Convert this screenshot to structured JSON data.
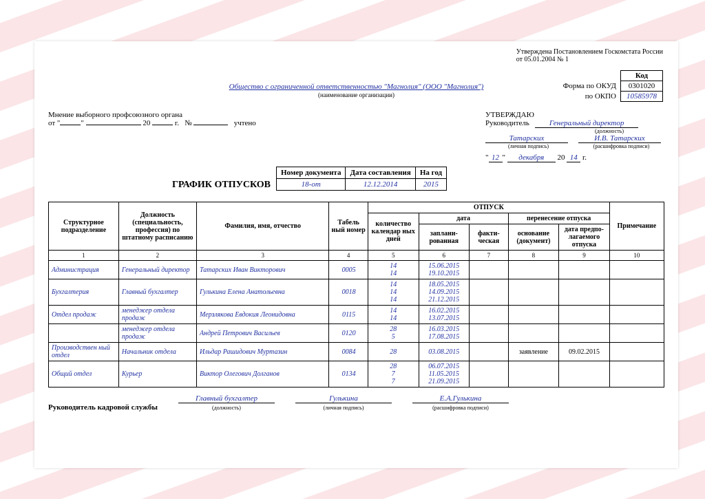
{
  "approval_notice": "Утверждена Постановлением Госкомстата России",
  "approval_date": "от 05.01.2004 № 1",
  "codes": {
    "header": "Код",
    "okud_label": "Форма по ОКУД",
    "okud": "0301020",
    "okpo_label": "по ОКПО",
    "okpo": "10585978"
  },
  "org_name": "Общество с ограниченной ответственностью \"Магнолия\"  (ООО \"Магнолия\")",
  "org_sub": "(наименование организации)",
  "union": {
    "line1": "Мнение выборного профсоюзного органа",
    "from": "от",
    "year": "20",
    "g": "г.",
    "num": "№",
    "accounted": "учтено"
  },
  "approve": {
    "title": "УТВЕРЖДАЮ",
    "head": "Руководитель",
    "position": "Генеральный директор",
    "position_sub": "(должность)",
    "sign": "Татарских",
    "sign_sub": "(личная подпись)",
    "name": "И.В. Татарских",
    "name_sub": "(расшифровка подписи)",
    "day": "12",
    "month": "декабря",
    "year_prefix": "20",
    "year": "14",
    "g": "г."
  },
  "doc_title": "ГРАФИК ОТПУСКОВ",
  "doc_box": {
    "h1": "Номер документа",
    "h2": "Дата составления",
    "h3": "На год",
    "v1": "18-от",
    "v2": "12.12.2014",
    "v3": "2015"
  },
  "headers": {
    "c1": "Структурное подразделение",
    "c2": "Должность (специальность, профессия) по штатному расписанию",
    "c3": "Фамилия, имя, отчество",
    "c4": "Табель ный номер",
    "vacation": "ОТПУСК",
    "c5": "количество календар ных дней",
    "date": "дата",
    "c6": "заплани- рованная",
    "c7": "факти- ческая",
    "transfer": "перенесение отпуска",
    "c8": "основание (документ)",
    "c9": "дата предпо- лагаемого отпуска",
    "c10": "Примечание"
  },
  "nums": [
    "1",
    "2",
    "3",
    "4",
    "5",
    "6",
    "7",
    "8",
    "9",
    "10"
  ],
  "rows": [
    {
      "dept": "Администрация",
      "pos": "Генеральный директор",
      "name": "Татарских Иван Викторович",
      "num": "0005",
      "days": "14\n14",
      "plan": "15.06.2015\n19.10.2015",
      "fact": "",
      "basis": "",
      "newdate": "",
      "note": ""
    },
    {
      "dept": "Бухгалтерия",
      "pos": "Главный бухгалтер",
      "name": "Гулькина Елена Анатольевна",
      "num": "0018",
      "days": "14\n14\n14",
      "plan": "18.05.2015\n14.09.2015\n21.12.2015",
      "fact": "",
      "basis": "",
      "newdate": "",
      "note": ""
    },
    {
      "dept": "Отдел продаж",
      "pos": "менеджер отдела продаж",
      "name": "Мерзлякова Евдокия Леонидовна",
      "num": "0115",
      "days": "14\n14",
      "plan": "16.02.2015\n13.07.2015",
      "fact": "",
      "basis": "",
      "newdate": "",
      "note": ""
    },
    {
      "dept": "",
      "pos": "менеджер отдела продаж",
      "name": "Андрей Петрович Васильев",
      "num": "0120",
      "days": "28\n5",
      "plan": "16.03.2015\n17.08.2015",
      "fact": "",
      "basis": "",
      "newdate": "",
      "note": ""
    },
    {
      "dept": "Производствен ный отдел",
      "pos": "Начальник отдела",
      "name": "Ильдар Рашидович Муртазин",
      "num": "0084",
      "days": "28",
      "plan": "03.08.2015",
      "fact": "",
      "basis": "заявление",
      "newdate": "09.02.2015",
      "note": ""
    },
    {
      "dept": "Общий отдел",
      "pos": "Курьер",
      "name": "Виктор Олегович Долганов",
      "num": "0134",
      "days": "28\n7\n7",
      "plan": "06.07.2015\n11.05.2015\n21.09.2015",
      "fact": "",
      "basis": "",
      "newdate": "",
      "note": ""
    }
  ],
  "footer": {
    "label": "Руководитель кадровой службы",
    "position": "Главный бухгалтер",
    "position_sub": "(должность)",
    "sign": "Гулькина",
    "sign_sub": "(личная подпись)",
    "name": "Е.А.Гулькина",
    "name_sub": "(расшифровка подписи)"
  }
}
